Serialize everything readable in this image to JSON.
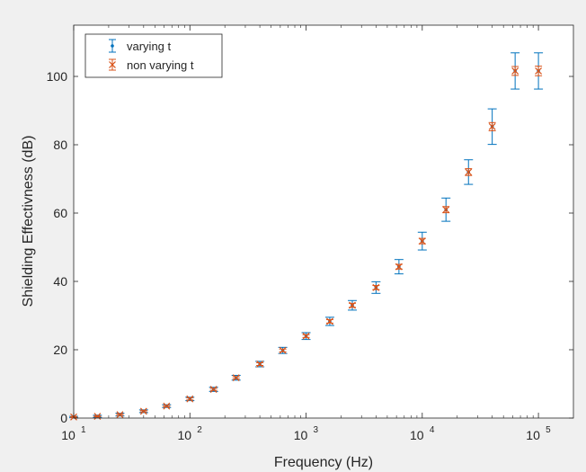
{
  "chart_data": {
    "type": "scatter",
    "xlabel": "Frequency (Hz)",
    "ylabel": "Shielding Effectivness (dB)",
    "xscale": "log",
    "xlim": [
      10,
      200000
    ],
    "ylim": [
      0,
      115
    ],
    "x_ticks": [
      {
        "value": 10,
        "base": "10",
        "exp": "1"
      },
      {
        "value": 100,
        "base": "10",
        "exp": "2"
      },
      {
        "value": 1000,
        "base": "10",
        "exp": "3"
      },
      {
        "value": 10000,
        "base": "10",
        "exp": "4"
      },
      {
        "value": 100000,
        "base": "10",
        "exp": "5"
      }
    ],
    "y_ticks": [
      "0",
      "20",
      "40",
      "60",
      "80",
      "100"
    ],
    "grid": false,
    "legend_position": "top-left",
    "x": [
      10,
      16,
      25,
      40,
      63,
      100,
      160,
      250,
      400,
      630,
      1000,
      1600,
      2500,
      4000,
      6300,
      10000,
      16000,
      25000,
      40000,
      63000,
      100000
    ],
    "series": [
      {
        "name": "varying t",
        "marker": "point",
        "color": "#0072BD",
        "values": [
          0.3,
          0.5,
          1.0,
          2.0,
          3.5,
          5.6,
          8.4,
          11.8,
          15.8,
          19.8,
          24.0,
          28.3,
          33.0,
          38.2,
          44.3,
          51.8,
          61.0,
          72.0,
          85.3,
          101.6,
          101.6
        ],
        "errors": [
          0.2,
          0.3,
          0.4,
          0.4,
          0.4,
          0.5,
          0.6,
          0.7,
          0.8,
          0.9,
          1.0,
          1.2,
          1.4,
          1.7,
          2.1,
          2.6,
          3.4,
          3.6,
          5.2,
          5.3,
          5.3
        ]
      },
      {
        "name": "non varying t",
        "marker": "x",
        "color": "#D95319",
        "values": [
          0.3,
          0.5,
          1.0,
          2.0,
          3.5,
          5.6,
          8.4,
          11.8,
          15.8,
          19.8,
          24.0,
          28.3,
          33.0,
          38.2,
          44.3,
          51.8,
          61.0,
          72.0,
          85.3,
          101.6,
          101.6
        ],
        "errors": [
          0.1,
          0.1,
          0.2,
          0.2,
          0.2,
          0.3,
          0.3,
          0.3,
          0.4,
          0.4,
          0.4,
          0.5,
          0.6,
          0.6,
          0.7,
          0.8,
          0.9,
          1.0,
          1.2,
          1.3,
          1.4
        ]
      }
    ]
  }
}
